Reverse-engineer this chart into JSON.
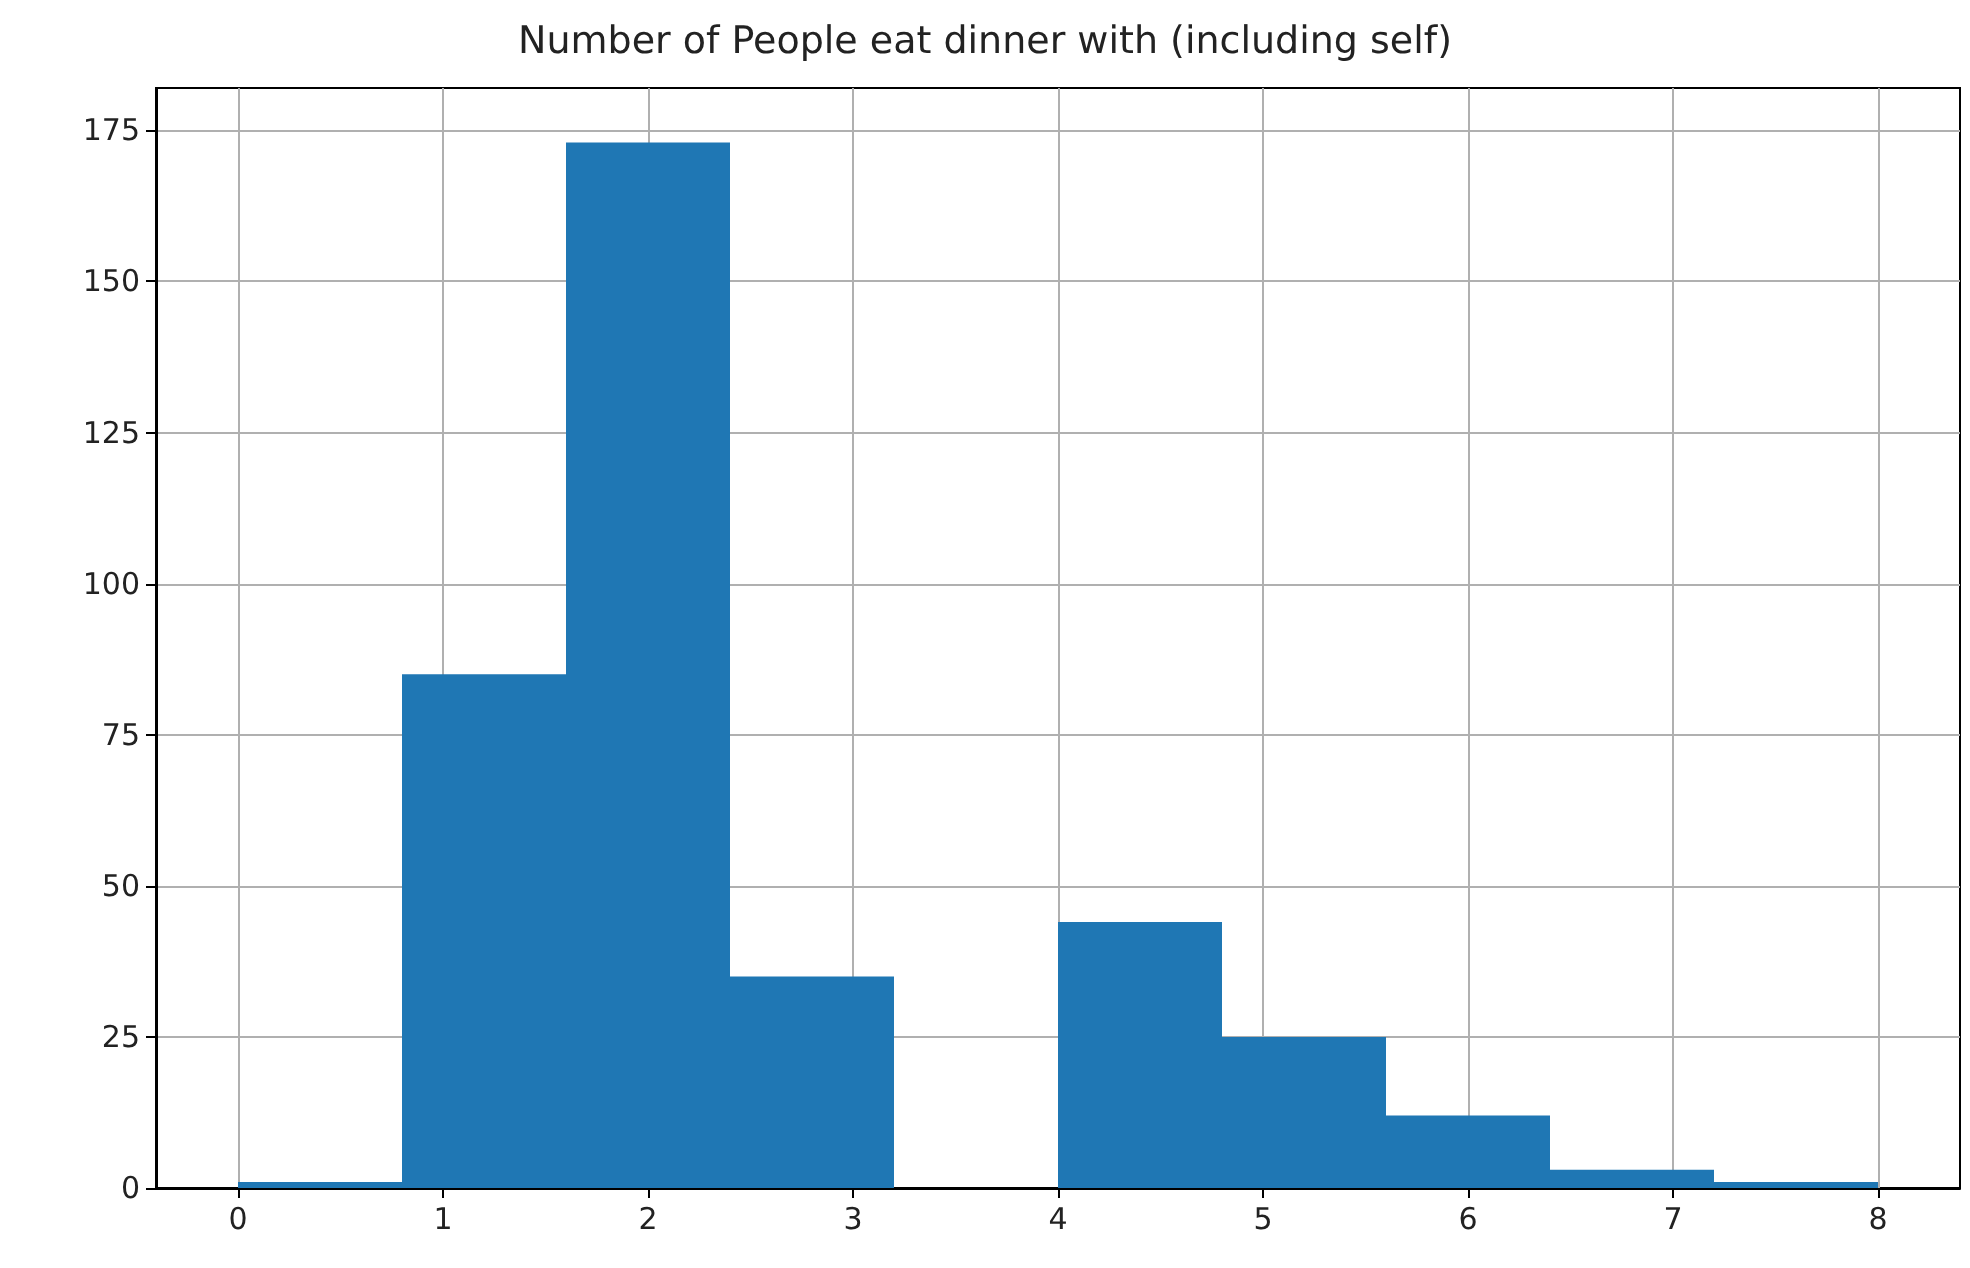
{
  "chart_data": {
    "type": "histogram",
    "title": "Number of People eat dinner with (including self)",
    "bins": [
      0,
      0.8,
      1.6,
      2.4,
      3.2,
      4.0,
      4.8,
      5.6,
      6.4,
      7.2,
      8.0
    ],
    "values": [
      1,
      85,
      173,
      35,
      0,
      44,
      25,
      12,
      3,
      1
    ],
    "color": "#1f77b4",
    "xlim": [
      -0.4,
      8.4
    ],
    "xticks": [
      0,
      1,
      2,
      3,
      4,
      5,
      6,
      7,
      8
    ],
    "ylim": [
      0,
      182
    ],
    "yticks": [
      0,
      25,
      50,
      75,
      100,
      125,
      150,
      175
    ],
    "grid": true
  }
}
